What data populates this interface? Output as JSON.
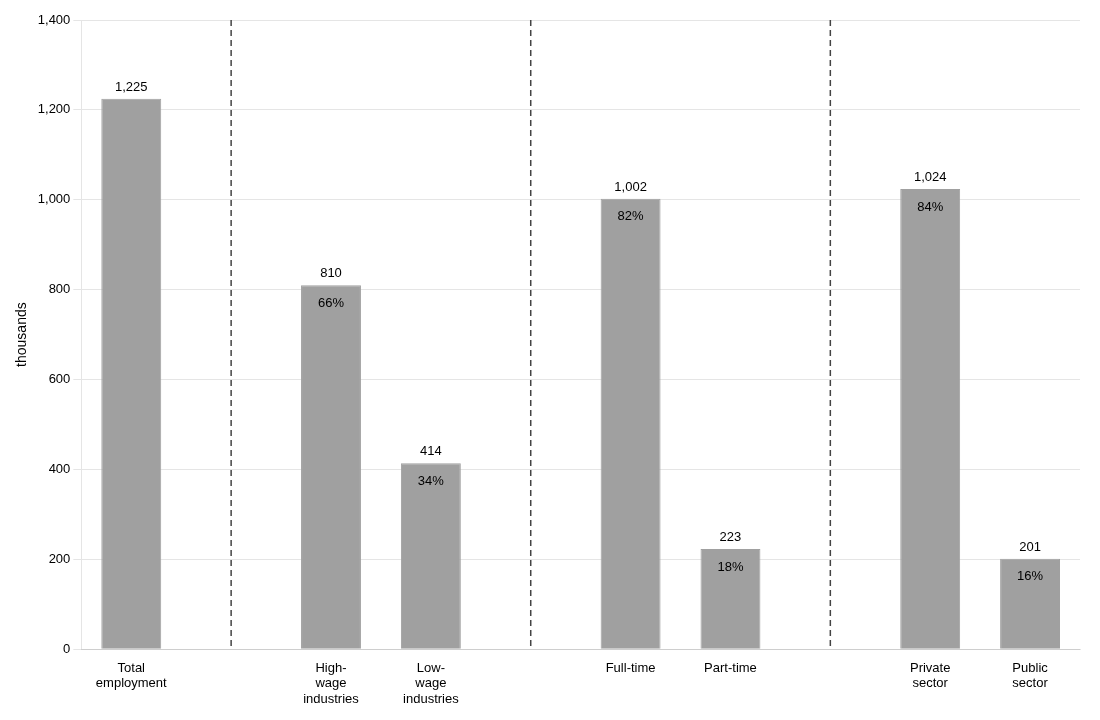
{
  "chart_data": {
    "type": "bar",
    "categories": [
      "Total\nemployment",
      null,
      "High-\nwage\nindustries",
      "Low-\nwage\nindustries",
      null,
      "Full-time",
      "Part-time",
      null,
      "Private\nsector",
      "Public\nsector"
    ],
    "values": [
      1225,
      null,
      810,
      414,
      null,
      1002,
      223,
      null,
      1024,
      201
    ],
    "value_labels": [
      "1,225",
      null,
      "810",
      "414",
      null,
      "1,002",
      "223",
      null,
      "1,024",
      "201"
    ],
    "share_labels": [
      null,
      null,
      "66%",
      "34%",
      null,
      "82%",
      "18%",
      null,
      "84%",
      "16%"
    ],
    "data_labels": true,
    "color": "#A0A0A0",
    "ylabel": "thousands",
    "ylim": [
      0,
      1400
    ],
    "yticks": [
      0,
      200,
      400,
      600,
      800,
      {
        "value": 1000,
        "label": "1,000"
      },
      {
        "value": 1200,
        "label": "1,200"
      },
      {
        "value": 1400,
        "label": "1,400"
      }
    ],
    "grid": true
  }
}
